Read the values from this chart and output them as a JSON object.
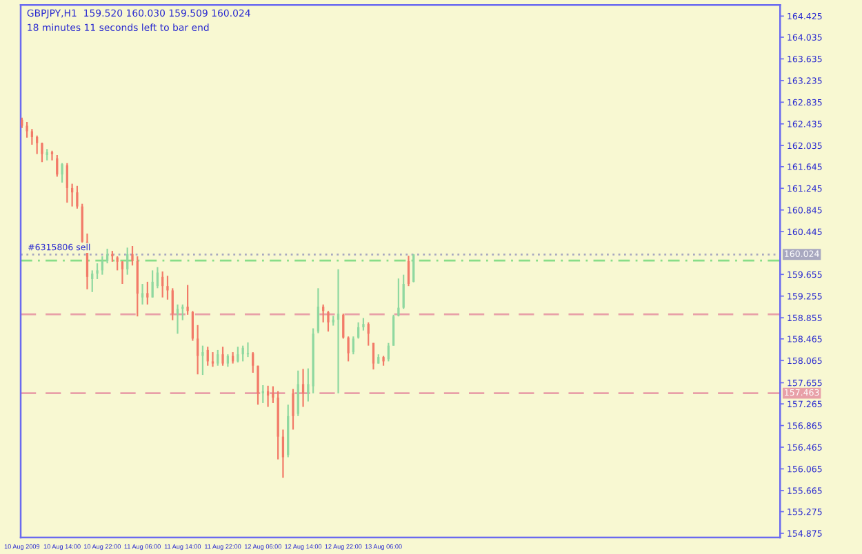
{
  "chart_data": {
    "type": "candlestick",
    "title": "GBPJPY,H1  159.520 160.030 159.509 160.024",
    "subtitle": "18 minutes 11 seconds left to bar end",
    "series": [
      {
        "color": "#8fd8a0",
        "x": [
          "2009-08-10T11:00",
          "2009-08-10T14:00",
          "2009-08-10T20:00",
          "2009-08-10T21:00",
          "2009-08-10T22:00",
          "2009-08-10T23:00",
          "2009-08-11T03:00",
          "2009-08-11T06:00",
          "2009-08-11T08:00",
          "2009-08-11T09:00",
          "2009-08-11T13:00",
          "2009-08-11T14:00",
          "2009-08-11T18:00",
          "2009-08-11T21:00",
          "2009-08-11T23:00",
          "2009-08-12T01:00",
          "2009-08-12T02:00",
          "2009-08-12T03:00",
          "2009-08-12T06:00",
          "2009-08-12T11:00",
          "2009-08-12T13:00",
          "2009-08-12T15:00",
          "2009-08-12T16:00",
          "2009-08-12T17:00",
          "2009-08-12T20:00",
          "2009-08-12T21:00",
          "2009-08-13T00:00",
          "2009-08-13T01:00",
          "2009-08-13T02:00",
          "2009-08-13T05:00",
          "2009-08-13T07:00",
          "2009-08-13T08:00",
          "2009-08-13T09:00",
          "2009-08-13T10:00",
          "2009-08-13T12:00"
        ],
        "ohlc": [
          [
            161.86,
            161.97,
            161.76,
            161.91
          ],
          [
            161.5,
            161.71,
            161.35,
            161.69
          ],
          [
            159.57,
            159.73,
            159.33,
            159.67
          ],
          [
            159.67,
            159.86,
            159.57,
            159.73
          ],
          [
            159.73,
            159.99,
            159.65,
            159.9
          ],
          [
            159.9,
            160.13,
            159.86,
            160.03
          ],
          [
            159.75,
            160.15,
            159.65,
            160.03
          ],
          [
            159.23,
            159.48,
            159.1,
            159.31
          ],
          [
            159.23,
            159.73,
            159.23,
            159.52
          ],
          [
            159.44,
            159.79,
            159.4,
            159.69
          ],
          [
            158.93,
            159.1,
            158.56,
            159.02
          ],
          [
            159.02,
            159.1,
            158.81,
            159.06
          ],
          [
            158.15,
            158.34,
            157.8,
            158.22
          ],
          [
            158.01,
            158.26,
            157.97,
            158.18
          ],
          [
            158.01,
            158.18,
            157.95,
            158.15
          ],
          [
            158.05,
            158.32,
            158.03,
            158.18
          ],
          [
            158.18,
            158.34,
            158.05,
            158.3
          ],
          [
            158.18,
            158.4,
            158.13,
            158.2
          ],
          [
            157.46,
            157.61,
            157.28,
            157.5
          ],
          [
            156.32,
            157.25,
            156.28,
            157.04
          ],
          [
            157.08,
            157.88,
            157.04,
            157.63
          ],
          [
            157.46,
            157.92,
            157.31,
            157.63
          ],
          [
            157.59,
            158.66,
            157.46,
            158.56
          ],
          [
            158.6,
            159.4,
            158.57,
            159.06
          ],
          [
            158.77,
            158.89,
            158.71,
            158.82
          ],
          [
            158.82,
            159.75,
            157.46,
            158.93
          ],
          [
            158.22,
            158.51,
            158.18,
            158.47
          ],
          [
            158.49,
            158.77,
            158.47,
            158.68
          ],
          [
            158.68,
            158.85,
            158.62,
            158.74
          ],
          [
            158.01,
            158.18,
            158.01,
            158.13
          ],
          [
            158.09,
            158.39,
            158.05,
            158.34
          ],
          [
            158.34,
            158.91,
            158.34,
            158.88
          ],
          [
            158.89,
            159.58,
            158.88,
            159.04
          ],
          [
            159.04,
            159.65,
            159.02,
            159.48
          ],
          [
            159.52,
            160.03,
            159.509,
            160.024
          ]
        ]
      },
      {
        "color": "#f27a68",
        "x": [
          "2009-08-10T06:00",
          "2009-08-10T07:00",
          "2009-08-10T08:00",
          "2009-08-10T09:00",
          "2009-08-10T10:00",
          "2009-08-10T12:00",
          "2009-08-10T13:00",
          "2009-08-10T15:00",
          "2009-08-10T16:00",
          "2009-08-10T17:00",
          "2009-08-10T18:00",
          "2009-08-10T19:00",
          "2009-08-11T00:00",
          "2009-08-11T01:00",
          "2009-08-11T02:00",
          "2009-08-11T04:00",
          "2009-08-11T05:00",
          "2009-08-11T07:00",
          "2009-08-11T10:00",
          "2009-08-11T11:00",
          "2009-08-11T12:00",
          "2009-08-11T15:00",
          "2009-08-11T16:00",
          "2009-08-11T17:00",
          "2009-08-11T19:00",
          "2009-08-11T20:00",
          "2009-08-11T22:00",
          "2009-08-12T00:00",
          "2009-08-12T04:00",
          "2009-08-12T05:00",
          "2009-08-12T07:00",
          "2009-08-12T08:00",
          "2009-08-12T09:00",
          "2009-08-12T10:00",
          "2009-08-12T12:00",
          "2009-08-12T14:00",
          "2009-08-12T18:00",
          "2009-08-12T19:00",
          "2009-08-12T22:00",
          "2009-08-12T23:00",
          "2009-08-13T03:00",
          "2009-08-13T04:00",
          "2009-08-13T06:00",
          "2009-08-13T11:00"
        ],
        "ohlc": [
          [
            162.51,
            162.55,
            162.36,
            162.4
          ],
          [
            162.4,
            162.47,
            162.18,
            162.3
          ],
          [
            162.3,
            162.34,
            162.05,
            162.19
          ],
          [
            162.19,
            162.22,
            161.88,
            162.08
          ],
          [
            162.08,
            162.09,
            161.73,
            161.88
          ],
          [
            161.91,
            161.94,
            161.76,
            161.88
          ],
          [
            161.8,
            161.86,
            161.46,
            161.5
          ],
          [
            161.67,
            161.71,
            160.98,
            161.25
          ],
          [
            161.25,
            161.33,
            160.91,
            161.17
          ],
          [
            161.17,
            161.29,
            160.87,
            160.91
          ],
          [
            160.91,
            160.96,
            160.24,
            160.26
          ],
          [
            160.26,
            160.41,
            159.38,
            159.61
          ],
          [
            160.03,
            160.09,
            159.89,
            159.99
          ],
          [
            159.97,
            159.99,
            159.73,
            159.89
          ],
          [
            159.89,
            159.9,
            159.48,
            159.75
          ],
          [
            160.03,
            160.18,
            159.82,
            159.9
          ],
          [
            159.9,
            159.99,
            158.88,
            159.3
          ],
          [
            159.31,
            159.52,
            159.1,
            159.23
          ],
          [
            159.61,
            159.71,
            159.23,
            159.44
          ],
          [
            159.44,
            159.63,
            159.19,
            159.36
          ],
          [
            159.36,
            159.4,
            158.81,
            158.93
          ],
          [
            159.06,
            159.46,
            158.91,
            158.98
          ],
          [
            158.96,
            158.98,
            158.43,
            158.47
          ],
          [
            158.47,
            158.72,
            157.81,
            158.15
          ],
          [
            158.26,
            158.32,
            157.97,
            158.05
          ],
          [
            158.05,
            158.22,
            157.95,
            158.01
          ],
          [
            158.18,
            158.32,
            157.97,
            158.01
          ],
          [
            158.15,
            158.22,
            158.01,
            158.05
          ],
          [
            158.2,
            158.22,
            157.84,
            157.97
          ],
          [
            157.97,
            157.97,
            157.25,
            157.46
          ],
          [
            157.5,
            157.6,
            157.21,
            157.42
          ],
          [
            157.46,
            157.59,
            157.28,
            157.38
          ],
          [
            157.38,
            157.5,
            156.24,
            156.66
          ],
          [
            156.66,
            156.79,
            155.9,
            156.28
          ],
          [
            157.46,
            157.54,
            156.79,
            157.04
          ],
          [
            157.63,
            157.91,
            157.21,
            157.46
          ],
          [
            159.06,
            159.1,
            158.77,
            158.98
          ],
          [
            158.96,
            158.98,
            158.6,
            158.77
          ],
          [
            158.91,
            158.93,
            158.47,
            158.49
          ],
          [
            158.49,
            158.51,
            158.05,
            158.2
          ],
          [
            158.74,
            158.77,
            158.34,
            158.56
          ],
          [
            158.39,
            158.39,
            157.9,
            158.01
          ],
          [
            158.13,
            158.15,
            157.97,
            158.05
          ],
          [
            159.9,
            160.0,
            159.44,
            159.48
          ]
        ]
      }
    ],
    "xlim": [
      "2009-08-10T05:45",
      "2009-08-16T13:00"
    ],
    "xticks": [
      {
        "value": "2009-08-10T06:00",
        "label": "10 Aug 2009"
      },
      {
        "value": "2009-08-10T14:00",
        "label": "10 Aug 14:00"
      },
      {
        "value": "2009-08-10T22:00",
        "label": "10 Aug 22:00"
      },
      {
        "value": "2009-08-11T06:00",
        "label": "11 Aug 06:00"
      },
      {
        "value": "2009-08-11T14:00",
        "label": "11 Aug 14:00"
      },
      {
        "value": "2009-08-11T22:00",
        "label": "11 Aug 22:00"
      },
      {
        "value": "2009-08-12T06:00",
        "label": "12 Aug 06:00"
      },
      {
        "value": "2009-08-12T14:00",
        "label": "12 Aug 14:00"
      },
      {
        "value": "2009-08-12T22:00",
        "label": "12 Aug 22:00"
      },
      {
        "value": "2009-08-13T06:00",
        "label": "13 Aug 06:00"
      }
    ],
    "ylim": [
      154.8,
      164.63
    ],
    "yticks": [
      {
        "value": 164.425,
        "label": "164.425"
      },
      {
        "value": 164.035,
        "label": "164.035"
      },
      {
        "value": 163.635,
        "label": "163.635"
      },
      {
        "value": 163.235,
        "label": "163.235"
      },
      {
        "value": 162.835,
        "label": "162.835"
      },
      {
        "value": 162.435,
        "label": "162.435"
      },
      {
        "value": 162.035,
        "label": "162.035"
      },
      {
        "value": 161.645,
        "label": "161.645"
      },
      {
        "value": 161.245,
        "label": "161.245"
      },
      {
        "value": 160.845,
        "label": "160.845"
      },
      {
        "value": 160.445,
        "label": "160.445"
      },
      {
        "value": 159.655,
        "label": "159.655"
      },
      {
        "value": 159.255,
        "label": "159.255"
      },
      {
        "value": 158.855,
        "label": "158.855"
      },
      {
        "value": 158.465,
        "label": "158.465"
      },
      {
        "value": 158.065,
        "label": "158.065"
      },
      {
        "value": 157.655,
        "label": "157.655"
      },
      {
        "value": 157.265,
        "label": "157.265"
      },
      {
        "value": 156.865,
        "label": "156.865"
      },
      {
        "value": 156.465,
        "label": "156.465"
      },
      {
        "value": 156.065,
        "label": "156.065"
      },
      {
        "value": 155.665,
        "label": "155.665"
      },
      {
        "value": 155.275,
        "label": "155.275"
      },
      {
        "value": 154.875,
        "label": "154.875"
      }
    ],
    "ref_lines": [
      {
        "axis": "y",
        "value": 160.024,
        "label": "160.024",
        "color": "#a8a8c0",
        "line_style": "dotted"
      },
      {
        "axis": "y",
        "value": 159.91,
        "color": "#88dd88",
        "line_style": "dashdot"
      },
      {
        "axis": "y",
        "value": 158.92,
        "color": "#e8a0a8",
        "line_style": "dashed"
      },
      {
        "axis": "y",
        "value": 157.463,
        "label": "157.463",
        "color": "#e8a0a8",
        "line_style": "dashed"
      }
    ],
    "annotations": [
      {
        "text": "#6315806 sell",
        "x": "2009-08-10T06:00",
        "y": 159.91
      }
    ],
    "grid": false,
    "legend": false
  }
}
